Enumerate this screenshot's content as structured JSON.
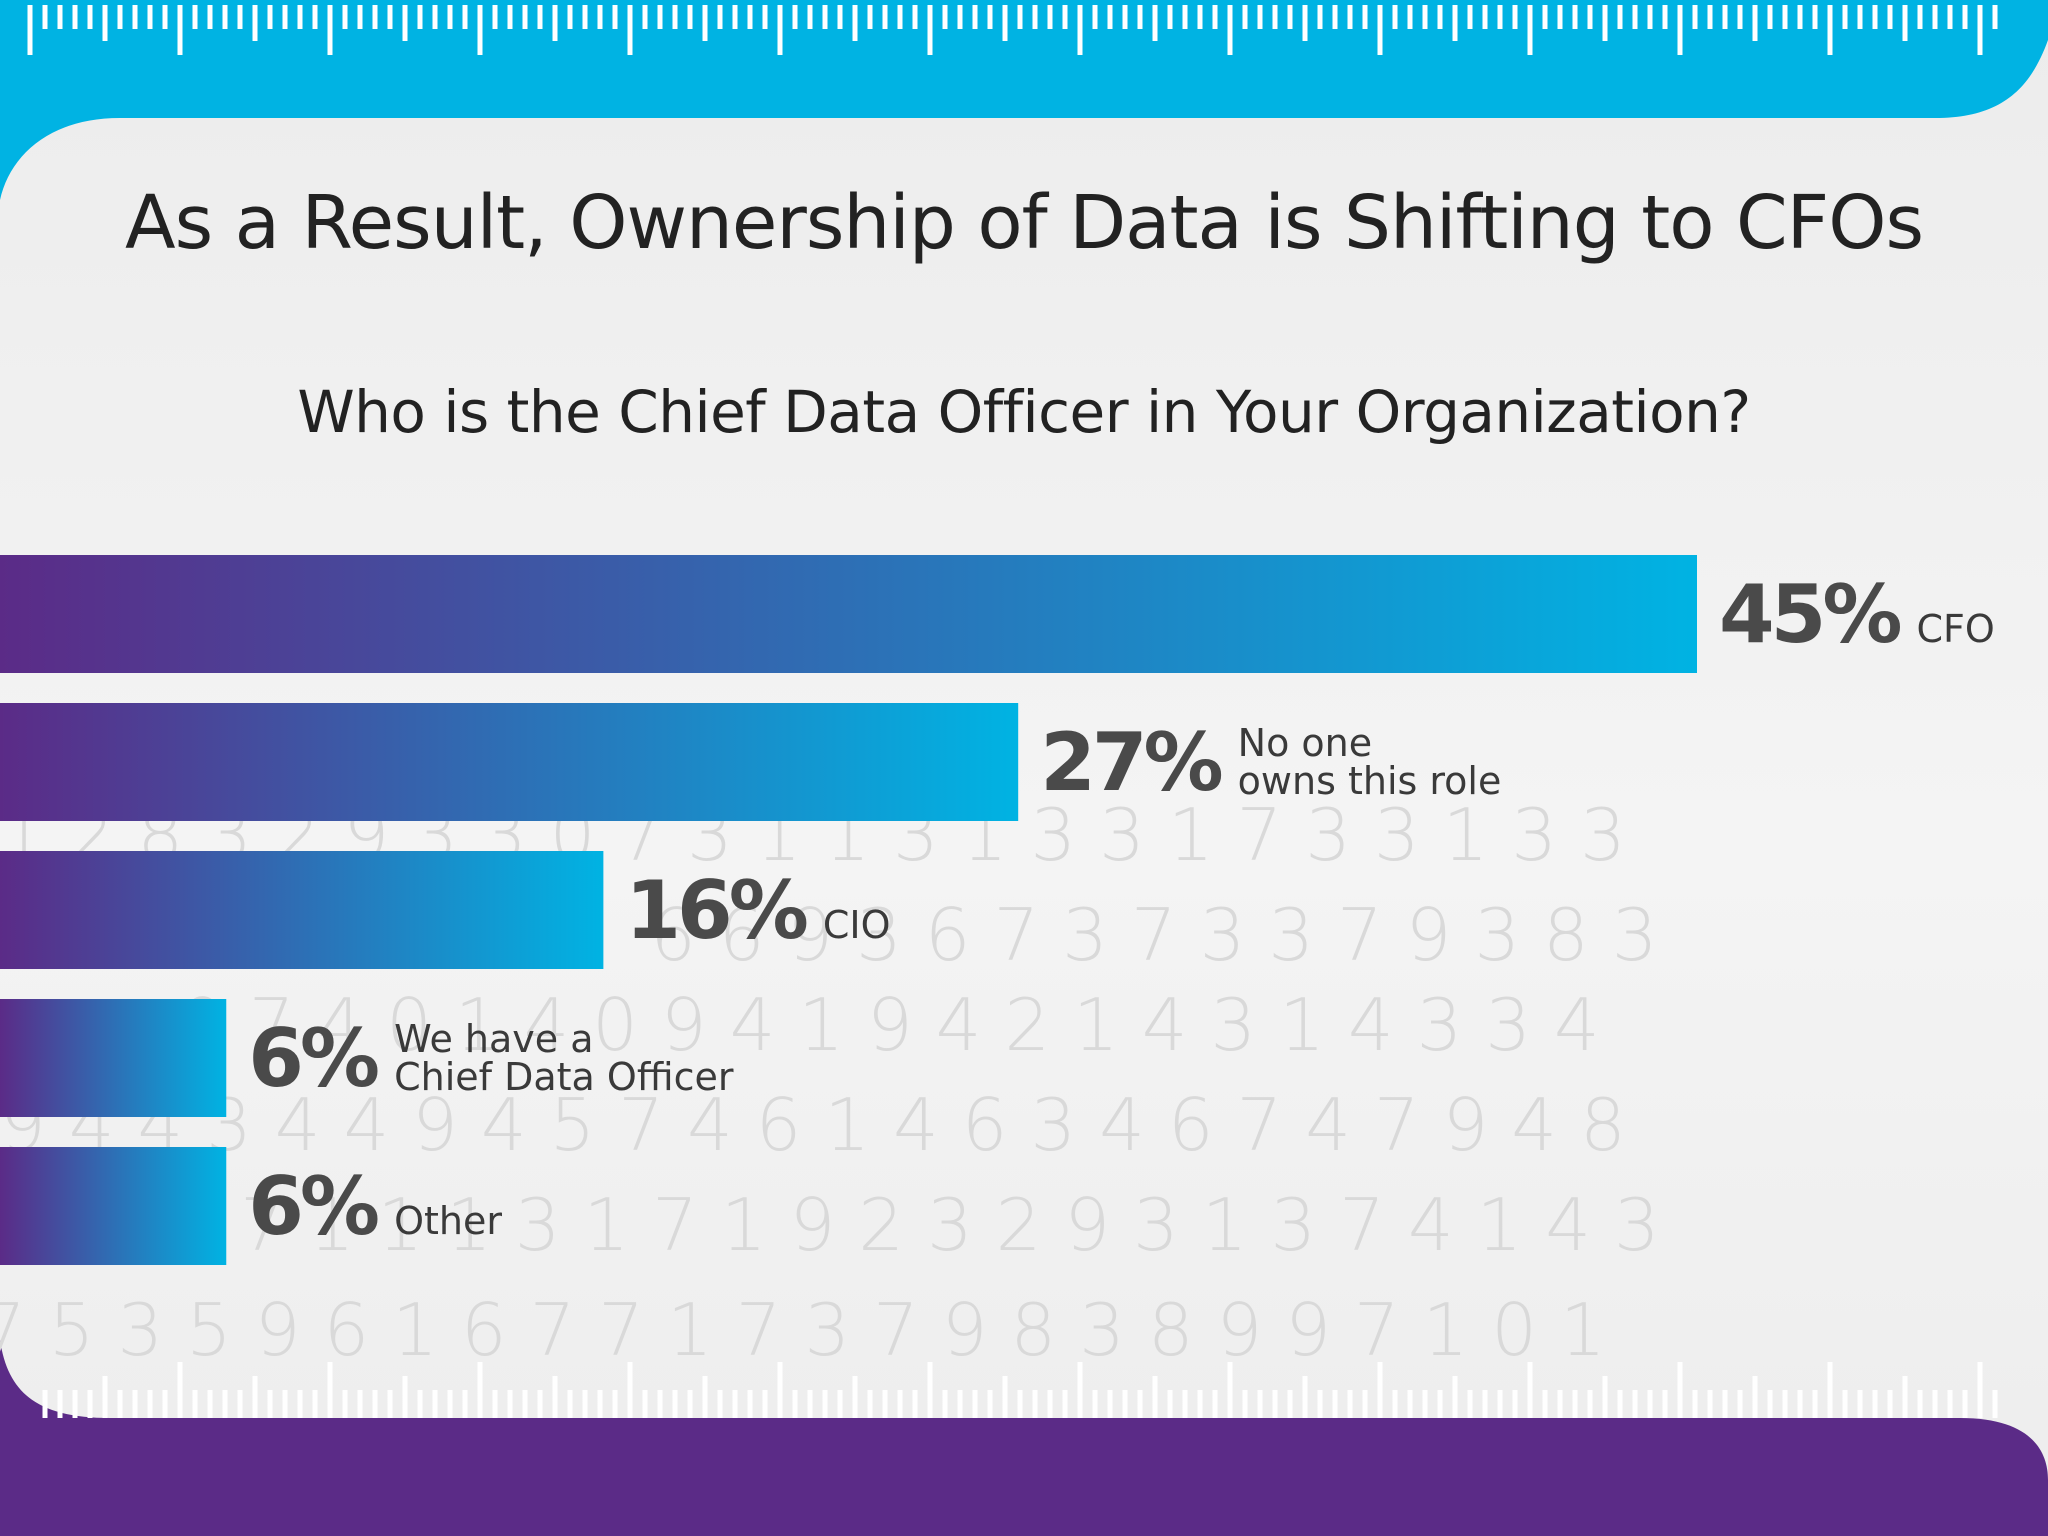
{
  "title": "As a Result, Ownership of Data is Shifting to CFOs",
  "subtitle": "Who is the Chief Data Officer in Your Organization?",
  "colors": {
    "top_band": "#00b3e3",
    "bottom_band": "#5b2b87",
    "bar_start": "#5b2b87",
    "bar_end": "#00b3e3",
    "background": "#efefef"
  },
  "background_digits": [
    "1 2 8 3 2 9 3 3 0 7 3 1 1 3 1 3 3 1 7 3 3 1 3 3",
    "6 6 9 3 6 7 3 7 3 3 7 9 3 8 3",
    "9 7 4 0 1 4 0 9 4 1 9 4 2 1 4 3 1 4 3 3 4",
    "9 4 4 3 4 4 9 4 5 7 4 6 1 4 6 3 4 6 7 4 7 9 4 8",
    "7 1 1 1 3 1 7 1 9 2 3 2 9 3 1 3 7 4 1 4 3",
    "7 5 3 5 9 6 1 6 7 7 1 7 3 7 9 8 3 8 9 9 7 1 0 1"
  ],
  "chart_data": {
    "type": "bar",
    "orientation": "horizontal",
    "title": "As a Result, Ownership of Data is Shifting to CFOs",
    "subtitle": "Who is the Chief Data Officer in Your Organization?",
    "unit": "%",
    "xlim": [
      0,
      100
    ],
    "grid": false,
    "legend": "none",
    "categories": [
      [
        "CFO"
      ],
      [
        "No one",
        "owns this role"
      ],
      [
        "CIO"
      ],
      [
        "We have a",
        "Chief Data Officer"
      ],
      [
        "Other"
      ]
    ],
    "values": [
      45,
      27,
      16,
      6,
      6
    ],
    "value_labels": [
      "45%",
      "27%",
      "16%",
      "6%",
      "6%"
    ]
  }
}
